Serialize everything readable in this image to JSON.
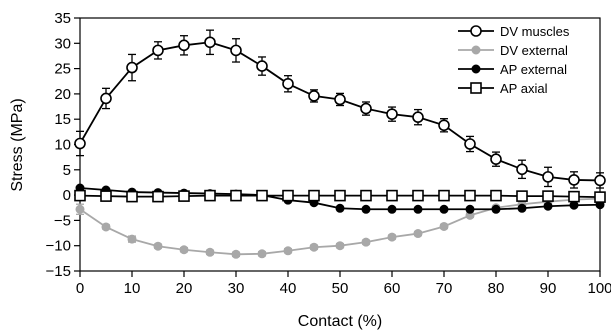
{
  "chart_data": {
    "type": "line",
    "xlabel": "Contact (%)",
    "ylabel": "Stress (MPa)",
    "xlim": [
      0,
      100
    ],
    "ylim": [
      -15,
      35
    ],
    "xticks": [
      0,
      10,
      20,
      30,
      40,
      50,
      60,
      70,
      80,
      90,
      100
    ],
    "yticks": [
      -15,
      -10,
      -5,
      0,
      5,
      10,
      15,
      20,
      25,
      30,
      35
    ],
    "legend_position": "top-right",
    "x": [
      0,
      5,
      10,
      15,
      20,
      25,
      30,
      35,
      40,
      45,
      50,
      55,
      60,
      65,
      70,
      75,
      80,
      85,
      90,
      95,
      100
    ],
    "series": [
      {
        "name": "DV muscles",
        "marker": "open-circle",
        "color": "#000000",
        "values": [
          10.2,
          19.1,
          25.2,
          28.6,
          29.6,
          30.2,
          28.6,
          25.5,
          22.0,
          19.6,
          18.9,
          17.1,
          16.0,
          15.4,
          13.8,
          10.1,
          7.1,
          5.1,
          3.6,
          3.0,
          2.9
        ],
        "errors": [
          2.4,
          2.0,
          2.6,
          1.7,
          1.9,
          2.4,
          2.3,
          1.8,
          1.6,
          1.2,
          1.2,
          1.3,
          1.4,
          1.5,
          1.3,
          1.5,
          1.4,
          1.8,
          1.9,
          1.6,
          1.5
        ]
      },
      {
        "name": "DV external",
        "marker": "filled-circle",
        "color": "#a8a8a8",
        "values": [
          -2.8,
          -6.3,
          -8.7,
          -10.1,
          -10.8,
          -11.3,
          -11.7,
          -11.6,
          -11.0,
          -10.3,
          -10.0,
          -9.3,
          -8.3,
          -7.6,
          -6.2,
          -4.0,
          -2.5,
          -1.8,
          -1.3,
          -0.9,
          -0.7
        ],
        "errors": [
          1.0,
          0.4,
          0.6,
          0.4,
          0.4,
          0.4,
          0.4,
          0.4,
          0.4,
          0.4,
          0.4,
          0.4,
          0.4,
          0.4,
          0.4,
          0.4,
          0.4,
          0.4,
          0.4,
          0.4,
          0.4
        ]
      },
      {
        "name": "AP external",
        "marker": "filled-circle",
        "color": "#000000",
        "values": [
          1.4,
          1.0,
          0.6,
          0.5,
          0.4,
          0.3,
          0.2,
          0.0,
          -1.0,
          -1.5,
          -2.6,
          -2.8,
          -2.8,
          -2.8,
          -2.8,
          -2.8,
          -2.8,
          -2.6,
          -2.2,
          -2.0,
          -1.9
        ],
        "errors": [
          0.3,
          0.2,
          0.2,
          0.2,
          0.2,
          0.2,
          0.2,
          0.2,
          0.2,
          0.2,
          0.2,
          0.2,
          0.2,
          0.2,
          0.2,
          0.2,
          0.2,
          0.2,
          0.2,
          0.2,
          0.2
        ]
      },
      {
        "name": "AP axial",
        "marker": "open-square",
        "color": "#000000",
        "values": [
          -0.1,
          -0.2,
          -0.3,
          -0.3,
          -0.2,
          -0.1,
          -0.1,
          -0.1,
          -0.1,
          -0.1,
          -0.1,
          -0.1,
          -0.1,
          -0.1,
          -0.1,
          -0.1,
          -0.1,
          -0.2,
          -0.2,
          -0.3,
          -0.4
        ],
        "errors": [
          0.2,
          0.2,
          0.2,
          0.2,
          0.2,
          0.2,
          0.2,
          0.2,
          0.2,
          0.2,
          0.2,
          0.2,
          0.2,
          0.2,
          0.2,
          0.2,
          0.2,
          0.2,
          0.2,
          0.2,
          0.2
        ]
      }
    ]
  }
}
